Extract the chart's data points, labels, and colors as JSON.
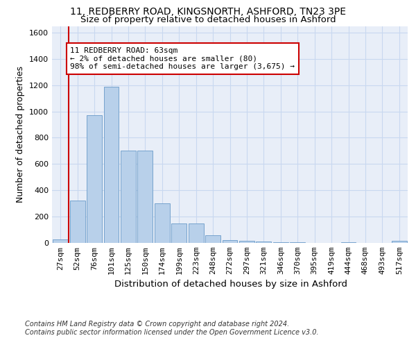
{
  "title_line1": "11, REDBERRY ROAD, KINGSNORTH, ASHFORD, TN23 3PE",
  "title_line2": "Size of property relative to detached houses in Ashford",
  "xlabel": "Distribution of detached houses by size in Ashford",
  "ylabel": "Number of detached properties",
  "bar_values": [
    25,
    320,
    970,
    1190,
    700,
    700,
    300,
    150,
    150,
    60,
    20,
    15,
    10,
    5,
    5,
    2,
    2,
    5,
    2,
    2,
    15
  ],
  "bar_labels": [
    "27sqm",
    "52sqm",
    "76sqm",
    "101sqm",
    "125sqm",
    "150sqm",
    "174sqm",
    "199sqm",
    "223sqm",
    "248sqm",
    "272sqm",
    "297sqm",
    "321sqm",
    "346sqm",
    "370sqm",
    "395sqm",
    "419sqm",
    "444sqm",
    "468sqm",
    "493sqm",
    "517sqm"
  ],
  "bar_color": "#b8d0ea",
  "bar_edge_color": "#6899c8",
  "grid_color": "#c8d8f0",
  "background_color": "#e8eef8",
  "vline_x": 0.5,
  "vline_color": "#cc0000",
  "annotation_text": "11 REDBERRY ROAD: 63sqm\n← 2% of detached houses are smaller (80)\n98% of semi-detached houses are larger (3,675) →",
  "annotation_box_color": "#cc0000",
  "ylim": [
    0,
    1650
  ],
  "yticks": [
    0,
    200,
    400,
    600,
    800,
    1000,
    1200,
    1400,
    1600
  ],
  "footer_text": "Contains HM Land Registry data © Crown copyright and database right 2024.\nContains public sector information licensed under the Open Government Licence v3.0.",
  "title_fontsize": 10,
  "subtitle_fontsize": 9.5,
  "xlabel_fontsize": 9.5,
  "ylabel_fontsize": 9,
  "tick_fontsize": 8,
  "footer_fontsize": 7,
  "ann_fontsize": 8
}
